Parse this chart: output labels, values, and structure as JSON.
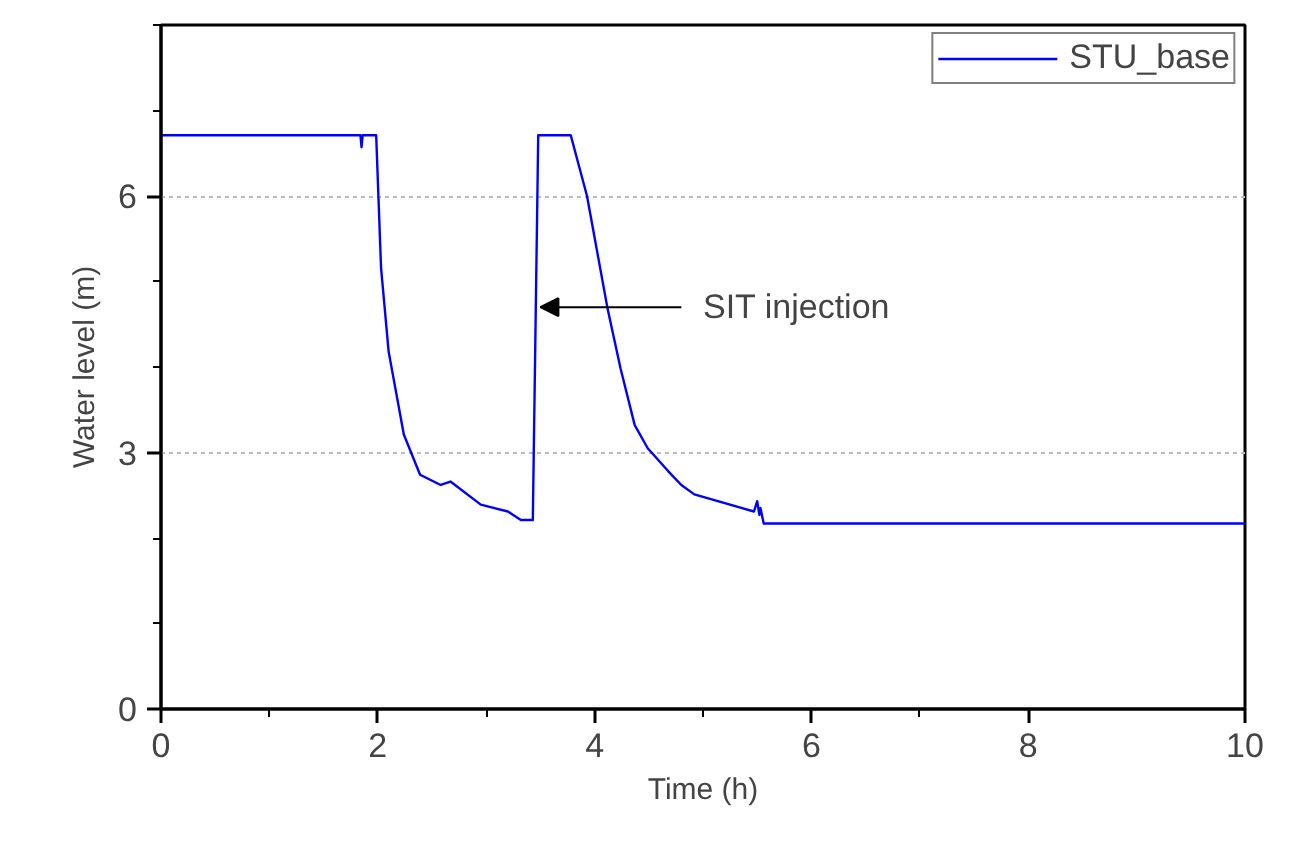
{
  "chart_data": {
    "type": "line",
    "xlabel": "Time (h)",
    "ylabel": "Water level (m)",
    "xlim": [
      0,
      10
    ],
    "ylim": [
      0,
      8
    ],
    "xticks": [
      0,
      2,
      4,
      6,
      8,
      10
    ],
    "yticks": [
      0,
      3,
      6
    ],
    "grid": "y",
    "legend": "top right",
    "line_style": "solid",
    "series": [
      {
        "name": "STU_base",
        "color": "#0000ff",
        "x": [
          0,
          1.84,
          1.85,
          1.86,
          1.985,
          2.03,
          2.1,
          2.24,
          2.39,
          2.58,
          2.67,
          2.95,
          3.2,
          3.32,
          3.43,
          3.48,
          3.78,
          3.93,
          4.12,
          4.24,
          4.37,
          4.49,
          4.68,
          4.8,
          4.92,
          5.47,
          5.5,
          5.52,
          5.53,
          5.56,
          10
        ],
        "values": [
          6.71,
          6.71,
          6.57,
          6.71,
          6.71,
          5.16,
          4.18,
          3.21,
          2.74,
          2.62,
          2.66,
          2.39,
          2.31,
          2.21,
          2.21,
          6.71,
          6.71,
          6.0,
          4.68,
          3.98,
          3.32,
          3.05,
          2.78,
          2.62,
          2.51,
          2.31,
          2.43,
          2.27,
          2.35,
          2.17,
          2.17
        ]
      }
    ],
    "annotations": [
      {
        "text": "SIT injection",
        "x": 3.5,
        "y": 4.7
      }
    ]
  }
}
